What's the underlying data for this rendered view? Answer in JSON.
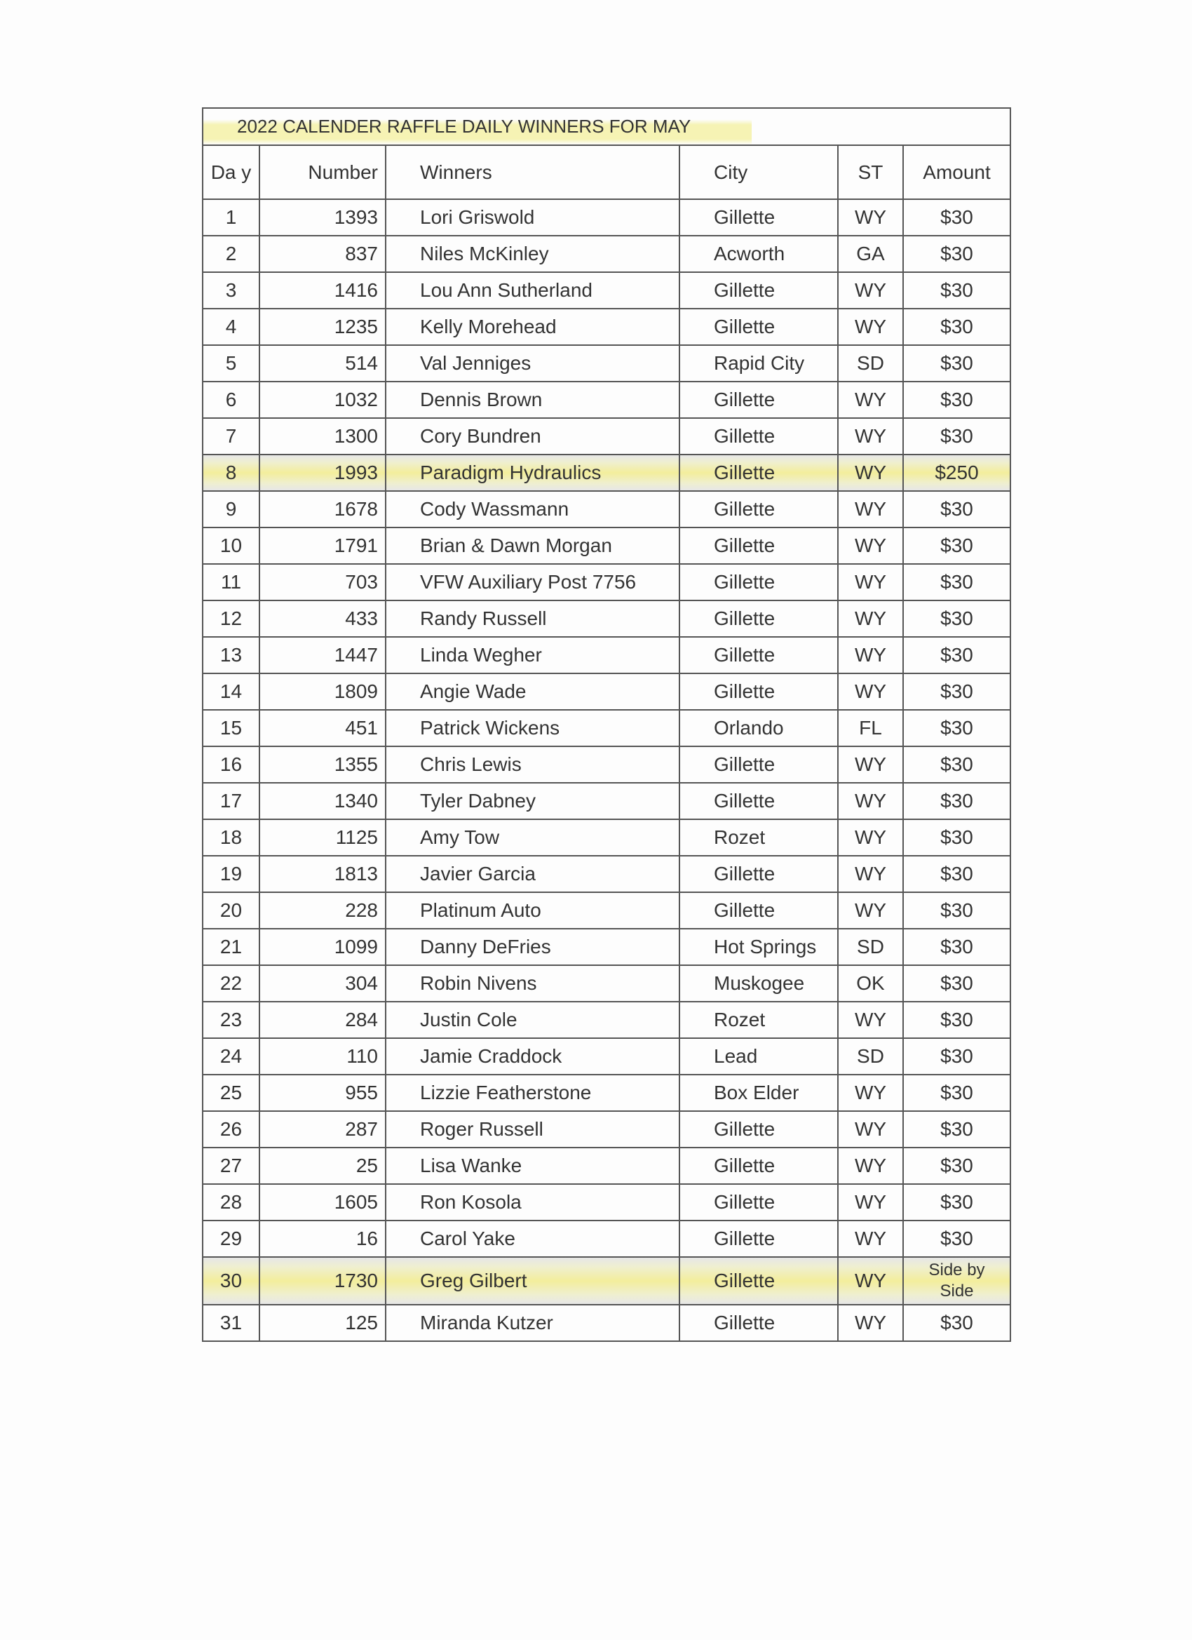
{
  "title": "2022 CALENDER RAFFLE DAILY WINNERS FOR MAY",
  "highlight_color": "#f3ee9c",
  "columns": {
    "day": "Da y",
    "number": "Number",
    "winners": "Winners",
    "city": "City",
    "st": "ST",
    "amount": "Amount"
  },
  "rows": [
    {
      "day": "1",
      "number": "1393",
      "winner": "Lori Griswold",
      "city": "Gillette",
      "st": "WY",
      "amount": "$30"
    },
    {
      "day": "2",
      "number": "837",
      "winner": "Niles McKinley",
      "city": "Acworth",
      "st": "GA",
      "amount": "$30"
    },
    {
      "day": "3",
      "number": "1416",
      "winner": "Lou Ann Sutherland",
      "city": "Gillette",
      "st": "WY",
      "amount": "$30"
    },
    {
      "day": "4",
      "number": "1235",
      "winner": "Kelly Morehead",
      "city": "Gillette",
      "st": "WY",
      "amount": "$30"
    },
    {
      "day": "5",
      "number": "514",
      "winner": "Val Jenniges",
      "city": "Rapid City",
      "st": "SD",
      "amount": "$30"
    },
    {
      "day": "6",
      "number": "1032",
      "winner": "Dennis Brown",
      "city": "Gillette",
      "st": "WY",
      "amount": "$30"
    },
    {
      "day": "7",
      "number": "1300",
      "winner": "Cory Bundren",
      "city": "Gillette",
      "st": "WY",
      "amount": "$30"
    },
    {
      "day": "8",
      "number": "1993",
      "winner": "Paradigm Hydraulics",
      "city": "Gillette",
      "st": "WY",
      "amount": "$250",
      "highlighted": true
    },
    {
      "day": "9",
      "number": "1678",
      "winner": "Cody Wassmann",
      "city": "Gillette",
      "st": "WY",
      "amount": "$30"
    },
    {
      "day": "10",
      "number": "1791",
      "winner": "Brian & Dawn Morgan",
      "city": "Gillette",
      "st": "WY",
      "amount": "$30"
    },
    {
      "day": "11",
      "number": "703",
      "winner": "VFW Auxiliary Post 7756",
      "city": "Gillette",
      "st": "WY",
      "amount": "$30"
    },
    {
      "day": "12",
      "number": "433",
      "winner": "Randy Russell",
      "city": "Gillette",
      "st": "WY",
      "amount": "$30"
    },
    {
      "day": "13",
      "number": "1447",
      "winner": "Linda Wegher",
      "city": "Gillette",
      "st": "WY",
      "amount": "$30"
    },
    {
      "day": "14",
      "number": "1809",
      "winner": "Angie Wade",
      "city": "Gillette",
      "st": "WY",
      "amount": "$30"
    },
    {
      "day": "15",
      "number": "451",
      "winner": "Patrick Wickens",
      "city": "Orlando",
      "st": "FL",
      "amount": "$30"
    },
    {
      "day": "16",
      "number": "1355",
      "winner": "Chris Lewis",
      "city": "Gillette",
      "st": "WY",
      "amount": "$30"
    },
    {
      "day": "17",
      "number": "1340",
      "winner": "Tyler Dabney",
      "city": "Gillette",
      "st": "WY",
      "amount": "$30"
    },
    {
      "day": "18",
      "number": "1125",
      "winner": "Amy Tow",
      "city": "Rozet",
      "st": "WY",
      "amount": "$30"
    },
    {
      "day": "19",
      "number": "1813",
      "winner": "Javier Garcia",
      "city": "Gillette",
      "st": "WY",
      "amount": "$30"
    },
    {
      "day": "20",
      "number": "228",
      "winner": "Platinum Auto",
      "city": "Gillette",
      "st": "WY",
      "amount": "$30"
    },
    {
      "day": "21",
      "number": "1099",
      "winner": "Danny DeFries",
      "city": "Hot Springs",
      "st": "SD",
      "amount": "$30"
    },
    {
      "day": "22",
      "number": "304",
      "winner": "Robin Nivens",
      "city": "Muskogee",
      "st": "OK",
      "amount": "$30"
    },
    {
      "day": "23",
      "number": "284",
      "winner": "Justin Cole",
      "city": "Rozet",
      "st": "WY",
      "amount": "$30"
    },
    {
      "day": "24",
      "number": "110",
      "winner": "Jamie Craddock",
      "city": "Lead",
      "st": "SD",
      "amount": "$30"
    },
    {
      "day": "25",
      "number": "955",
      "winner": "Lizzie Featherstone",
      "city": "Box Elder",
      "st": "WY",
      "amount": "$30"
    },
    {
      "day": "26",
      "number": "287",
      "winner": "Roger Russell",
      "city": "Gillette",
      "st": "WY",
      "amount": "$30"
    },
    {
      "day": "27",
      "number": "25",
      "winner": "Lisa Wanke",
      "city": "Gillette",
      "st": "WY",
      "amount": "$30"
    },
    {
      "day": "28",
      "number": "1605",
      "winner": "Ron Kosola",
      "city": "Gillette",
      "st": "WY",
      "amount": "$30"
    },
    {
      "day": "29",
      "number": "16",
      "winner": "Carol Yake",
      "city": "Gillette",
      "st": "WY",
      "amount": "$30"
    },
    {
      "day": "30",
      "number": "1730",
      "winner": "Greg Gilbert",
      "city": "Gillette",
      "st": "WY",
      "amount": "Side by Side",
      "highlighted": true
    },
    {
      "day": "31",
      "number": "125",
      "winner": "Miranda Kutzer",
      "city": "Gillette",
      "st": "WY",
      "amount": "$30"
    }
  ]
}
